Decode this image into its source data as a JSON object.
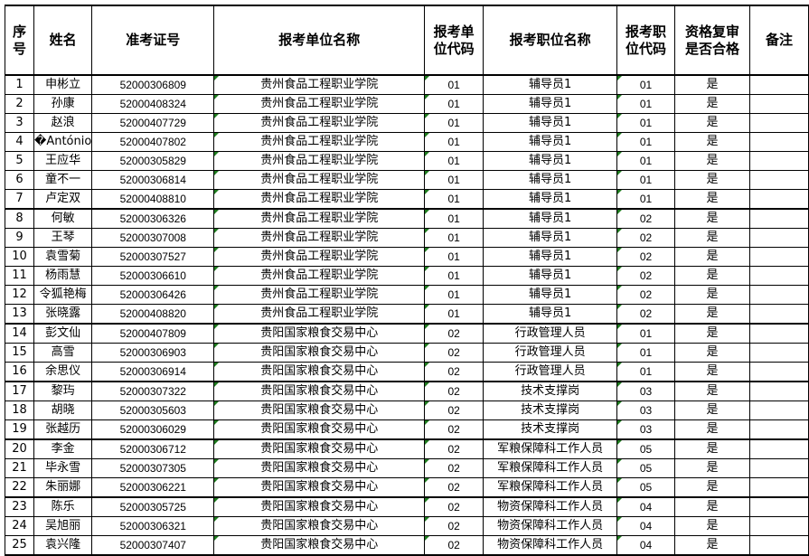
{
  "headers": [
    "序号",
    "姓名",
    "准考证号",
    "报考单位名称",
    "报考单位代码",
    "报考职位名称",
    "报考职位代码",
    "资格复审是否合格",
    "备注"
  ],
  "rows": [
    [
      "1",
      "申彬立",
      "52000306809",
      "贵州食品工程职业学院",
      "01",
      "辅导员1",
      "01",
      "是",
      ""
    ],
    [
      "2",
      "孙康",
      "52000408324",
      "贵州食品工程职业学院",
      "01",
      "辅导员1",
      "01",
      "是",
      ""
    ],
    [
      "3",
      "赵浪",
      "52000407729",
      "贵州食品工程职业学院",
      "01",
      "辅导员1",
      "01",
      "是",
      ""
    ],
    [
      "4",
      "�António",
      "52000407802",
      "贵州食品工程职业学院",
      "01",
      "辅导员1",
      "01",
      "是",
      ""
    ],
    [
      "5",
      "王应华",
      "52000305829",
      "贵州食品工程职业学院",
      "01",
      "辅导员1",
      "01",
      "是",
      ""
    ],
    [
      "6",
      "童不一",
      "52000306814",
      "贵州食品工程职业学院",
      "01",
      "辅导员1",
      "01",
      "是",
      ""
    ],
    [
      "7",
      "卢定双",
      "52000408810",
      "贵州食品工程职业学院",
      "01",
      "辅导员1",
      "01",
      "是",
      ""
    ],
    [
      "8",
      "何敏",
      "52000306326",
      "贵州食品工程职业学院",
      "01",
      "辅导员1",
      "02",
      "是",
      ""
    ],
    [
      "9",
      "王琴",
      "52000307008",
      "贵州食品工程职业学院",
      "01",
      "辅导员1",
      "02",
      "是",
      ""
    ],
    [
      "10",
      "袁雪菊",
      "52000307527",
      "贵州食品工程职业学院",
      "01",
      "辅导员1",
      "02",
      "是",
      ""
    ],
    [
      "11",
      "杨雨慧",
      "52000306610",
      "贵州食品工程职业学院",
      "01",
      "辅导员1",
      "02",
      "是",
      ""
    ],
    [
      "12",
      "令狐艳梅",
      "52000306426",
      "贵州食品工程职业学院",
      "01",
      "辅导员1",
      "02",
      "是",
      ""
    ],
    [
      "13",
      "张晓露",
      "52000408820",
      "贵州食品工程职业学院",
      "01",
      "辅导员1",
      "02",
      "是",
      ""
    ],
    [
      "14",
      "彭文仙",
      "52000407809",
      "贵阳国家粮食交易中心",
      "02",
      "行政管理人员",
      "01",
      "是",
      ""
    ],
    [
      "15",
      "高雪",
      "52000306903",
      "贵阳国家粮食交易中心",
      "02",
      "行政管理人员",
      "01",
      "是",
      ""
    ],
    [
      "16",
      "余思仪",
      "52000306914",
      "贵阳国家粮食交易中心",
      "02",
      "行政管理人员",
      "01",
      "是",
      ""
    ],
    [
      "17",
      "黎玙",
      "52000307322",
      "贵阳国家粮食交易中心",
      "02",
      "技术支撑岗",
      "03",
      "是",
      ""
    ],
    [
      "18",
      "胡晓",
      "52000305603",
      "贵阳国家粮食交易中心",
      "02",
      "技术支撑岗",
      "03",
      "是",
      ""
    ],
    [
      "19",
      "张越历",
      "52000306029",
      "贵阳国家粮食交易中心",
      "02",
      "技术支撑岗",
      "03",
      "是",
      ""
    ],
    [
      "20",
      "李金",
      "52000306712",
      "贵阳国家粮食交易中心",
      "02",
      "军粮保障科工作人员",
      "05",
      "是",
      ""
    ],
    [
      "21",
      "毕永雪",
      "52000307305",
      "贵阳国家粮食交易中心",
      "02",
      "军粮保障科工作人员",
      "05",
      "是",
      ""
    ],
    [
      "22",
      "朱丽娜",
      "52000306221",
      "贵阳国家粮食交易中心",
      "02",
      "军粮保障科工作人员",
      "05",
      "是",
      ""
    ],
    [
      "23",
      "陈乐",
      "52000305725",
      "贵阳国家粮食交易中心",
      "02",
      "物资保障科工作人员",
      "04",
      "是",
      ""
    ],
    [
      "24",
      "吴旭丽",
      "52000306321",
      "贵阳国家粮食交易中心",
      "02",
      "物资保障科工作人员",
      "04",
      "是",
      ""
    ],
    [
      "25",
      "袁兴隆",
      "52000307407",
      "贵阳国家粮食交易中心",
      "02",
      "物资保障科工作人员",
      "04",
      "是",
      ""
    ]
  ]
}
